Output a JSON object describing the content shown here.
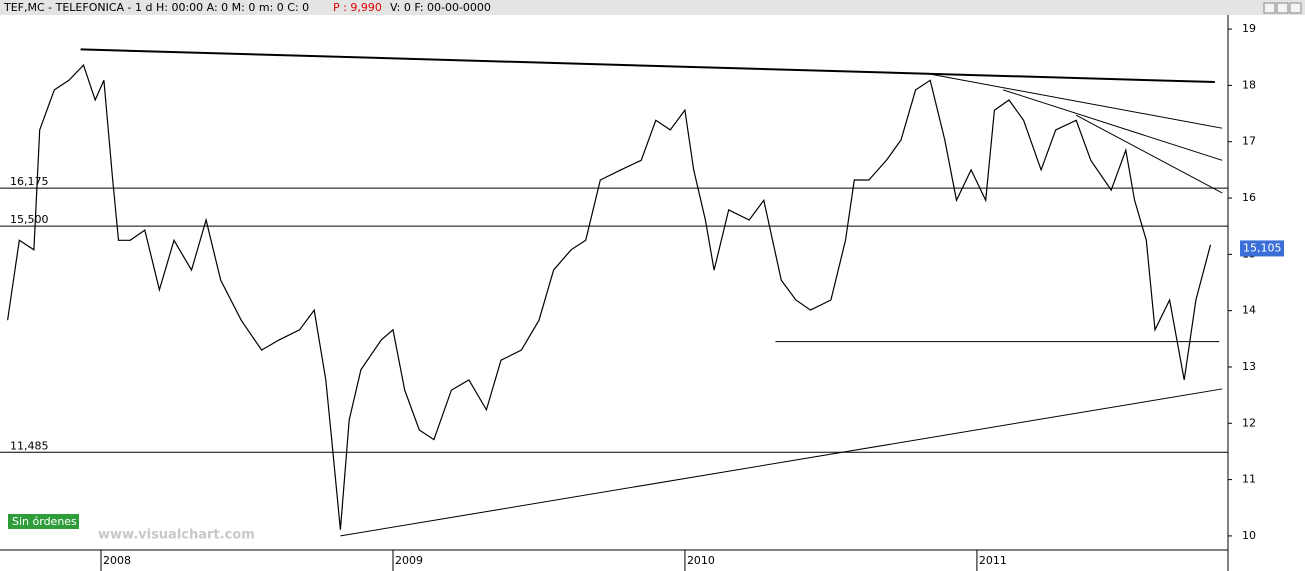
{
  "header": [
    "TEF,MC - TELEFONICA -  1 d H: 00:00 A: 0 M: 0 m: 0 C: 0",
    "P : 9,990",
    "V: 0 F: 00-00-0000"
  ],
  "status": "Sin órdenes",
  "watermark": "www.visualchart.com",
  "chart_data": {
    "type": "line",
    "series": [
      {
        "name": "TEF,MC",
        "color": "#000000",
        "x": [
          2007.68,
          2007.72,
          2007.77,
          2007.79,
          2007.84,
          2007.89,
          2007.94,
          2007.98,
          2008.01,
          2008.04,
          2008.06,
          2008.1,
          2008.15,
          2008.2,
          2008.25,
          2008.31,
          2008.36,
          2008.41,
          2008.48,
          2008.55,
          2008.61,
          2008.68,
          2008.73,
          2008.77,
          2008.79,
          2008.82,
          2008.85,
          2008.89,
          2008.96,
          2009.0,
          2009.04,
          2009.09,
          2009.14,
          2009.2,
          2009.26,
          2009.32,
          2009.37,
          2009.44,
          2009.5,
          2009.55,
          2009.61,
          2009.66,
          2009.71,
          2009.78,
          2009.85,
          2009.9,
          2009.95,
          2010.0,
          2010.03,
          2010.07,
          2010.1,
          2010.15,
          2010.22,
          2010.27,
          2010.33,
          2010.38,
          2010.43,
          2010.5,
          2010.55,
          2010.58,
          2010.63,
          2010.69,
          2010.74,
          2010.79,
          2010.84,
          2010.89,
          2010.93,
          2010.98,
          2011.03,
          2011.06,
          2011.11,
          2011.16,
          2011.22,
          2011.27,
          2011.34,
          2011.39,
          2011.46,
          2011.51,
          2011.54,
          2011.58,
          2011.61,
          2011.66,
          2011.71,
          2011.75,
          2011.8
        ],
        "values": [
          13.83,
          15.25,
          15.08,
          17.21,
          17.92,
          18.09,
          18.36,
          17.74,
          18.09,
          16.32,
          15.25,
          15.25,
          15.43,
          14.37,
          15.25,
          14.72,
          15.61,
          14.54,
          13.83,
          13.3,
          13.48,
          13.66,
          14.01,
          12.77,
          11.71,
          10.11,
          12.06,
          12.95,
          13.48,
          13.66,
          12.59,
          11.88,
          11.71,
          12.59,
          12.77,
          12.24,
          13.12,
          13.3,
          13.83,
          14.72,
          15.08,
          15.25,
          16.32,
          16.5,
          16.67,
          17.38,
          17.21,
          17.56,
          16.5,
          15.61,
          14.72,
          15.79,
          15.61,
          15.96,
          14.54,
          14.19,
          14.01,
          14.19,
          15.25,
          16.32,
          16.32,
          16.67,
          17.03,
          17.92,
          18.09,
          17.03,
          15.96,
          16.5,
          15.96,
          17.56,
          17.74,
          17.38,
          16.5,
          17.21,
          17.38,
          16.67,
          16.14,
          16.85,
          15.96,
          15.25,
          13.66,
          14.19,
          12.77,
          14.19,
          15.17
        ]
      }
    ],
    "levels": [
      {
        "value": 16.175,
        "label": "16,175"
      },
      {
        "value": 15.5,
        "label": "15,500"
      },
      {
        "value": 11.485,
        "label": "11,485"
      }
    ],
    "trendlines": [
      {
        "x": [
          2007.93,
          2011.815
        ],
        "y": [
          18.64,
          18.06
        ]
      },
      {
        "x": [
          2008.82,
          2011.84
        ],
        "y": [
          10.0,
          12.61
        ]
      },
      {
        "x": [
          2010.84,
          2011.84
        ],
        "y": [
          18.2,
          17.24
        ]
      },
      {
        "x": [
          2011.09,
          2011.84
        ],
        "y": [
          17.92,
          16.67
        ]
      },
      {
        "x": [
          2011.34,
          2011.84
        ],
        "y": [
          17.47,
          16.09
        ]
      },
      {
        "x": [
          2010.31,
          2011.83
        ],
        "y": [
          13.45,
          13.45
        ]
      }
    ],
    "last_price": {
      "value": 15.105,
      "label": "15,105"
    },
    "xlim": [
      2007.654,
      2011.86
    ],
    "xticks": [
      2008,
      2009,
      2010,
      2011
    ],
    "ylim": [
      9.75,
      19.25
    ],
    "yticks": [
      10,
      11,
      12,
      13,
      14,
      15,
      16,
      17,
      18,
      19
    ]
  }
}
